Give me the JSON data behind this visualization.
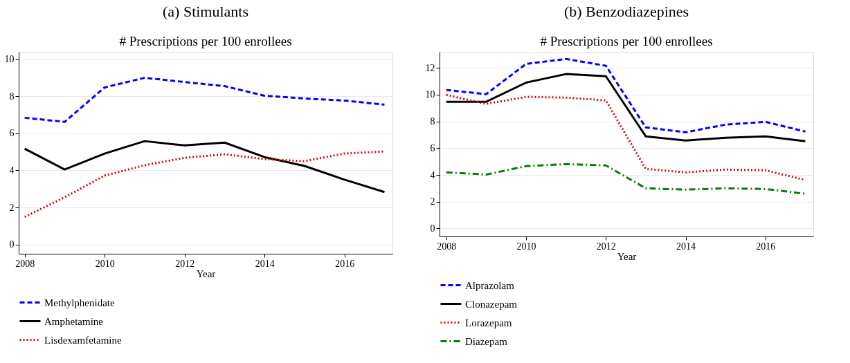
{
  "chart_data": [
    {
      "type": "line",
      "title": "(a) Stimulants",
      "subtitle": "# Prescriptions per 100 enrollees",
      "xlabel": "Year",
      "x": [
        2008,
        2009,
        2010,
        2011,
        2012,
        2013,
        2014,
        2015,
        2016,
        2017
      ],
      "xlim": [
        2007.85,
        2017.2
      ],
      "xticks": [
        2008,
        2010,
        2012,
        2014,
        2016
      ],
      "ylim": [
        -0.5,
        10.4
      ],
      "yticks": [
        0,
        2,
        4,
        6,
        8,
        10
      ],
      "grid": "y",
      "legend": "bottom",
      "marker": "none",
      "series": [
        {
          "name": "Methylphenidate",
          "color": "#0000ff",
          "line_style": "dashed",
          "values": [
            6.84,
            6.62,
            8.48,
            9.0,
            8.77,
            8.55,
            8.03,
            7.88,
            7.77,
            7.55
          ]
        },
        {
          "name": "Amphetamine",
          "color": "#000000",
          "line_style": "solid",
          "values": [
            5.17,
            4.05,
            4.91,
            5.58,
            5.35,
            5.5,
            4.72,
            4.24,
            3.5,
            2.83
          ]
        },
        {
          "name": "Lisdexamfetamine",
          "color": "#dd0000",
          "line_style": "dotted",
          "values": [
            1.49,
            2.55,
            3.72,
            4.28,
            4.68,
            4.87,
            4.61,
            4.5,
            4.91,
            5.02
          ]
        }
      ]
    },
    {
      "type": "line",
      "title": "(b) Benzodiazepines",
      "subtitle": "# Prescriptions per 100 enrollees",
      "xlabel": "Year",
      "x": [
        2008,
        2009,
        2010,
        2011,
        2012,
        2013,
        2014,
        2015,
        2016,
        2017
      ],
      "xlim": [
        2007.83,
        2017.2
      ],
      "xticks": [
        2008,
        2010,
        2012,
        2014,
        2016
      ],
      "ylim": [
        -0.6,
        13.2
      ],
      "yticks": [
        0,
        2,
        4,
        6,
        8,
        10,
        12
      ],
      "grid": "y",
      "legend": "bottom",
      "marker": "none",
      "series": [
        {
          "name": "Alprazolam",
          "color": "#0000ff",
          "line_style": "dashed",
          "values": [
            10.35,
            10.04,
            12.3,
            12.67,
            12.16,
            7.55,
            7.19,
            7.76,
            7.97,
            7.24
          ]
        },
        {
          "name": "Clonazepam",
          "color": "#000000",
          "line_style": "solid",
          "values": [
            9.47,
            9.47,
            10.9,
            11.54,
            11.38,
            6.88,
            6.57,
            6.78,
            6.88,
            6.52
          ]
        },
        {
          "name": "Lorazepam",
          "color": "#dd0000",
          "line_style": "dotted",
          "values": [
            9.98,
            9.31,
            9.83,
            9.78,
            9.57,
            4.45,
            4.19,
            4.4,
            4.35,
            3.62
          ]
        },
        {
          "name": "Diazepam",
          "color": "#008000",
          "line_style": "dashdot",
          "values": [
            4.19,
            4.03,
            4.66,
            4.81,
            4.71,
            3.0,
            2.9,
            3.0,
            2.95,
            2.59
          ]
        }
      ]
    }
  ]
}
